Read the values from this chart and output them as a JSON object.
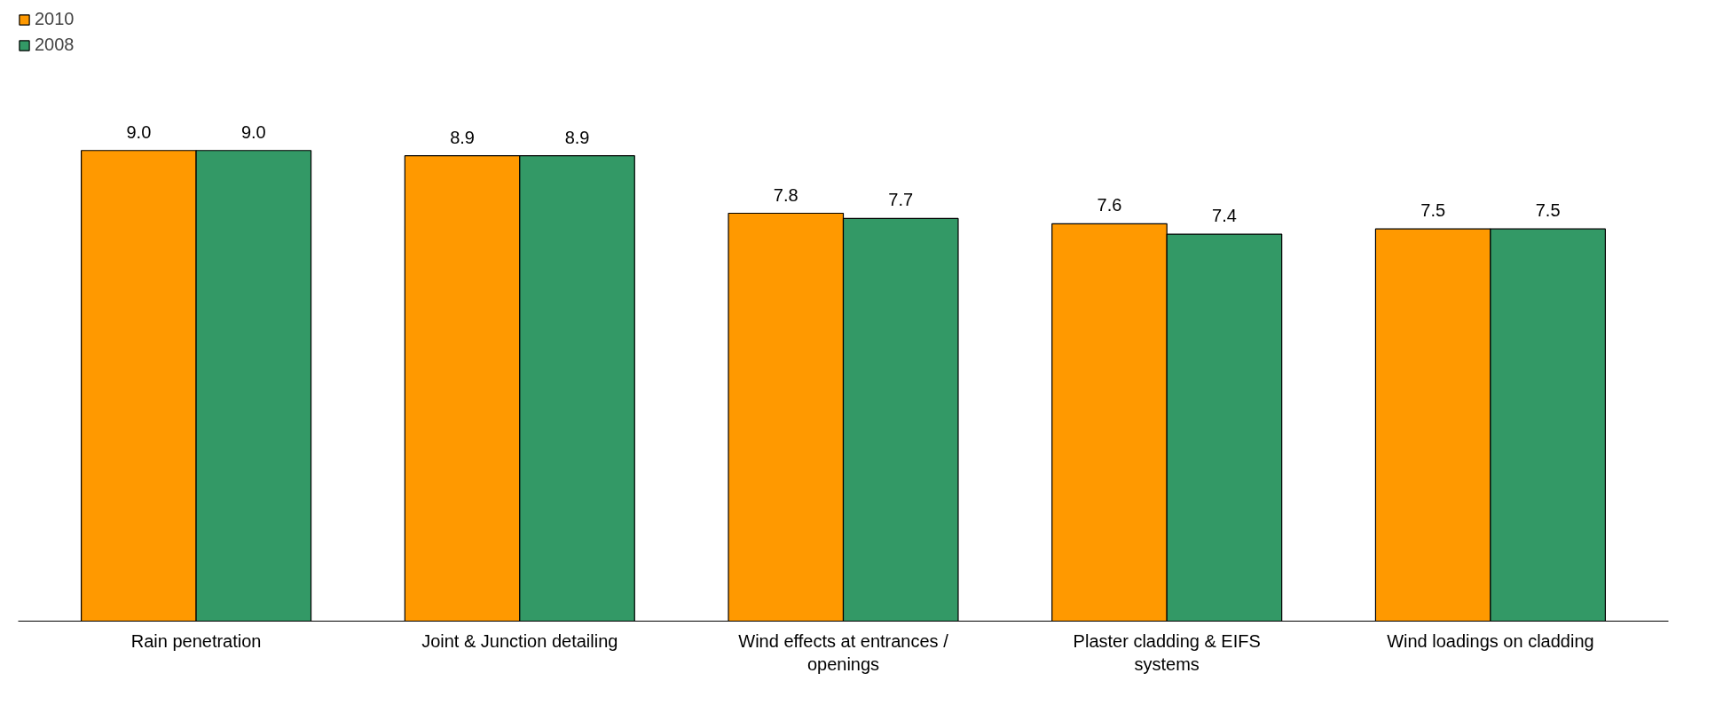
{
  "chart_data": {
    "type": "bar",
    "categories": [
      "Rain penetration",
      "Joint & Junction detailing",
      "Wind effects at entrances / openings",
      "Plaster cladding & EIFS systems",
      "Wind loadings on cladding"
    ],
    "series": [
      {
        "name": "2010",
        "color": "#ff9900",
        "values": [
          9.0,
          8.9,
          7.8,
          7.6,
          7.5
        ],
        "value_labels": [
          "9.0",
          "8.9",
          "7.8",
          "7.6",
          "7.5"
        ]
      },
      {
        "name": "2008",
        "color": "#339966",
        "values": [
          9.0,
          8.9,
          7.7,
          7.4,
          7.5
        ],
        "value_labels": [
          "9.0",
          "8.9",
          "7.7",
          "7.4",
          "7.5"
        ]
      }
    ],
    "legend": "top left",
    "grid": false,
    "tick_labels": "x"
  }
}
